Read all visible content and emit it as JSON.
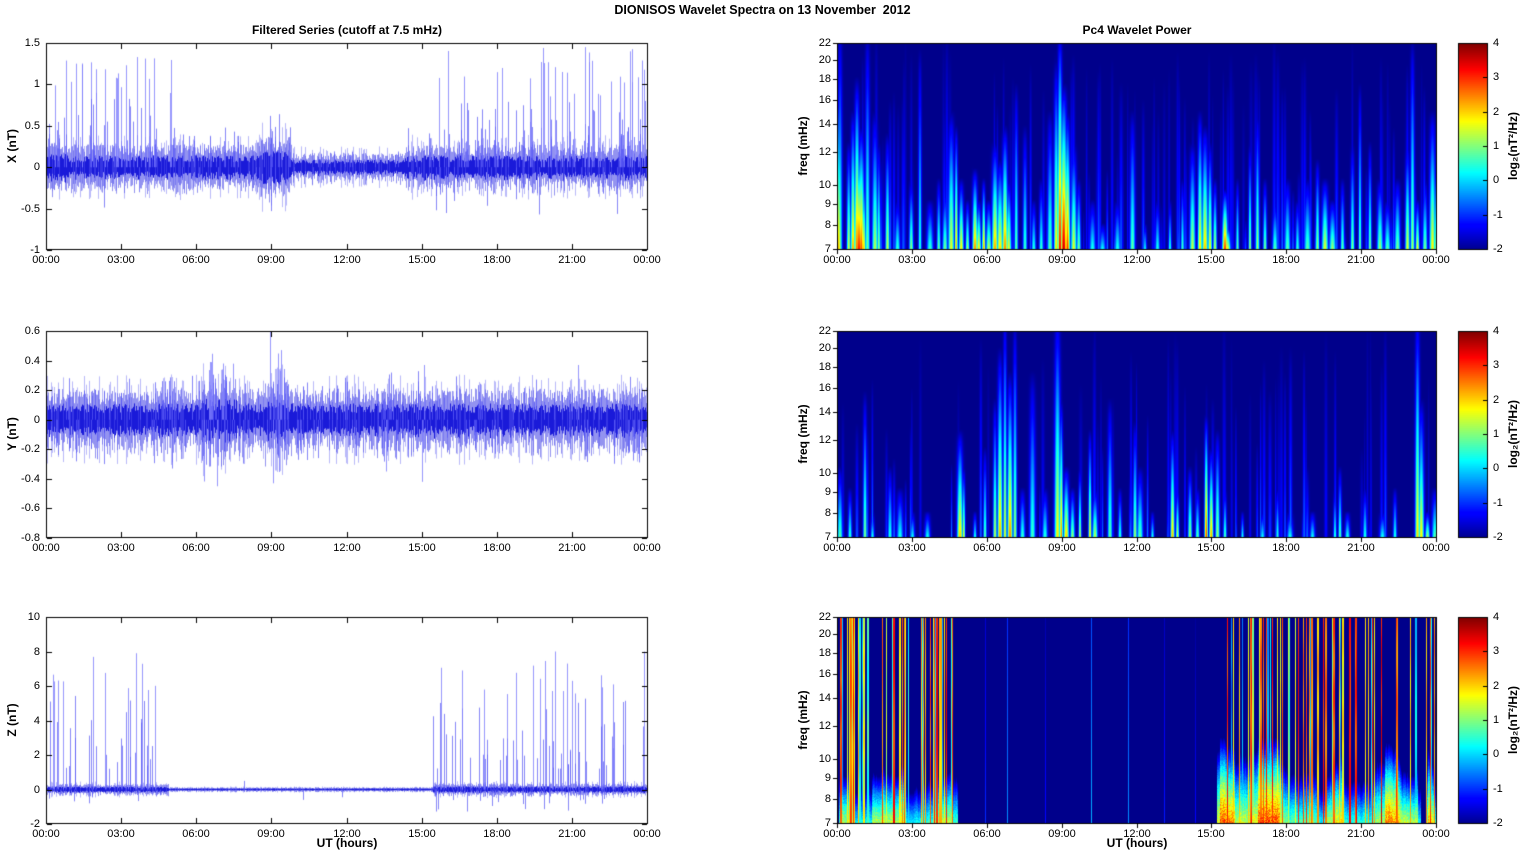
{
  "figure": {
    "title": "DIONISOS Wavelet Spectra on 13 November  2012",
    "background": "#ffffff",
    "colorbar_label": "log₂(nT²/Hz)",
    "series_color": "#0000dd",
    "spectrogram_background": "#00008b",
    "colormap": "jet"
  },
  "chart_data": [
    {
      "id": "x-filtered-series",
      "type": "line",
      "row": 0,
      "side": "left",
      "title": "Filtered Series (cutoff at 7.5 mHz)",
      "ylabel": "X (nT)",
      "xlabel": "",
      "ylim": [
        -1,
        1.5
      ],
      "yticks": [
        -1,
        -0.5,
        0,
        0.5,
        1,
        1.5
      ],
      "xtick_labels": [
        "00:00",
        "03:00",
        "06:00",
        "09:00",
        "12:00",
        "15:00",
        "18:00",
        "21:00",
        "00:00"
      ],
      "x_range_hours": [
        0,
        24
      ],
      "line_color": "#0000dd",
      "noise_segments": [
        [
          0,
          0.9,
          0.13
        ],
        [
          0.9,
          5,
          0.11
        ],
        [
          5,
          8.4,
          0.11
        ],
        [
          8.4,
          9.8,
          0.15
        ],
        [
          9.8,
          14.3,
          0.07
        ],
        [
          14.3,
          15.6,
          0.11
        ],
        [
          15.6,
          24,
          0.11
        ]
      ],
      "spike_segments": [
        [
          0,
          5,
          0.25,
          1.35,
          11
        ],
        [
          5,
          8.4,
          0.15,
          0.48,
          7
        ],
        [
          8.4,
          9.8,
          0.2,
          0.62,
          9
        ],
        [
          9.8,
          14.3,
          0.08,
          0.2,
          3
        ],
        [
          14.3,
          15.6,
          0.15,
          0.5,
          5
        ],
        [
          15.6,
          24,
          0.3,
          1.45,
          12
        ]
      ],
      "extra_spikes": [
        [
          8.92,
          0.62
        ],
        [
          8.97,
          -0.53
        ],
        [
          9.3,
          0.64
        ],
        [
          15.55,
          -0.52
        ],
        [
          3.62,
          1.33
        ],
        [
          19.8,
          1.44
        ],
        [
          21.5,
          1.45
        ],
        [
          23.9,
          0.8
        ],
        [
          2.78,
          1.08
        ],
        [
          15.3,
          0.35
        ]
      ],
      "pos_frac": 0.84,
      "neg_scale": 0.4,
      "seed": 11
    },
    {
      "id": "y-filtered-series",
      "type": "line",
      "row": 1,
      "side": "left",
      "title": "",
      "ylabel": "Y (nT)",
      "xlabel": "",
      "ylim": [
        -0.8,
        0.6
      ],
      "yticks": [
        -0.8,
        -0.6,
        -0.4,
        -0.2,
        0,
        0.2,
        0.4,
        0.6
      ],
      "xtick_labels": [
        "00:00",
        "03:00",
        "06:00",
        "09:00",
        "12:00",
        "15:00",
        "18:00",
        "21:00",
        "00:00"
      ],
      "x_range_hours": [
        0,
        24
      ],
      "line_color": "#0000dd",
      "noise_segments": [
        [
          0,
          6.2,
          0.085
        ],
        [
          6.2,
          7.6,
          0.11
        ],
        [
          7.6,
          8.7,
          0.085
        ],
        [
          8.7,
          9.6,
          0.11
        ],
        [
          9.6,
          24,
          0.085
        ]
      ],
      "spike_segments": [
        [
          0,
          24,
          0.12,
          0.3,
          6
        ],
        [
          4.7,
          5.3,
          0.2,
          0.33,
          8
        ],
        [
          6.2,
          7.6,
          0.25,
          0.45,
          10
        ],
        [
          8.7,
          9.5,
          0.25,
          0.5,
          10
        ],
        [
          9.5,
          10.6,
          0.2,
          0.35,
          6
        ],
        [
          13.2,
          14,
          0.2,
          0.35,
          6
        ],
        [
          14.6,
          15.4,
          0.2,
          0.4,
          8
        ],
        [
          22.9,
          23.9,
          0.18,
          0.3,
          6
        ]
      ],
      "extra_spikes": [
        [
          8.93,
          0.6
        ],
        [
          6.82,
          -0.45
        ],
        [
          6.55,
          0.39
        ],
        [
          7.05,
          0.38
        ],
        [
          9.05,
          -0.43
        ],
        [
          15.0,
          -0.42
        ],
        [
          15.08,
          0.37
        ],
        [
          5.02,
          -0.33
        ],
        [
          13.55,
          -0.35
        ],
        [
          23.3,
          0.29
        ],
        [
          21.2,
          0.37
        ],
        [
          2.3,
          -0.3
        ]
      ],
      "pos_frac": 0.5,
      "neg_scale": 1,
      "seed": 12
    },
    {
      "id": "z-filtered-series",
      "type": "line",
      "row": 2,
      "side": "left",
      "title": "",
      "ylabel": "Z (nT)",
      "xlabel": "UT (hours)",
      "ylim": [
        -2,
        10
      ],
      "yticks": [
        -2,
        0,
        2,
        4,
        6,
        8,
        10
      ],
      "xtick_labels": [
        "00:00",
        "03:00",
        "06:00",
        "09:00",
        "12:00",
        "15:00",
        "18:00",
        "21:00",
        "00:00"
      ],
      "x_range_hours": [
        0,
        24
      ],
      "line_color": "#0000dd",
      "noise_segments": [
        [
          0,
          4.9,
          0.13
        ],
        [
          4.9,
          15.4,
          0.05
        ],
        [
          15.4,
          24,
          0.14
        ]
      ],
      "spike_segments": [
        [
          0.1,
          4.9,
          1.2,
          7.9,
          9
        ],
        [
          15.4,
          24,
          1.2,
          8.0,
          11
        ]
      ],
      "extra_spikes": [
        [
          7.9,
          0.5
        ],
        [
          10.25,
          -0.6
        ],
        [
          11.8,
          -0.45
        ],
        [
          3.6,
          7.9
        ],
        [
          20.3,
          8.0
        ],
        [
          23.85,
          8.0
        ],
        [
          0.15,
          5.1
        ],
        [
          16.6,
          6.9
        ]
      ],
      "pos_frac": 0.78,
      "neg_scale": 0.16,
      "seed": 13
    },
    {
      "id": "x-wavelet-power",
      "type": "heatmap",
      "row": 0,
      "side": "right",
      "title": "Pc4 Wavelet Power",
      "ylabel": "freq (mHz)",
      "xlabel": "",
      "f_range": [
        7,
        22
      ],
      "f_ticks": [
        7,
        8,
        9,
        10,
        12,
        14,
        16,
        18,
        20,
        22
      ],
      "log_freq": true,
      "xtick_labels": [
        "00:00",
        "03:00",
        "06:00",
        "09:00",
        "12:00",
        "15:00",
        "18:00",
        "21:00",
        "00:00"
      ],
      "x_range_hours": [
        0,
        24
      ],
      "clim": [
        -2,
        4
      ],
      "colorbar_ticks": [
        4,
        3,
        2,
        1,
        0,
        -1,
        -2
      ],
      "faint_streaks": 150,
      "events": [
        [
          0.05,
          16,
          2.2
        ],
        [
          0.1,
          22,
          0.9
        ],
        [
          0.45,
          12,
          1.6
        ],
        [
          0.62,
          14,
          2.4
        ],
        [
          0.78,
          16.5,
          2.8
        ],
        [
          0.86,
          12,
          3.3
        ],
        [
          0.95,
          13,
          2.9
        ],
        [
          1.05,
          10,
          2.2
        ],
        [
          1.2,
          21,
          1.0
        ],
        [
          1.5,
          14,
          1.4
        ],
        [
          1.65,
          12,
          1.2
        ],
        [
          2.0,
          12.5,
          1.5
        ],
        [
          2.4,
          9,
          0.7
        ],
        [
          2.95,
          10,
          1.2
        ],
        [
          3.3,
          19,
          0.6
        ],
        [
          3.7,
          9,
          0.7
        ],
        [
          4.05,
          10,
          1.0
        ],
        [
          4.3,
          9.5,
          1.1
        ],
        [
          4.55,
          14,
          1.7
        ],
        [
          4.75,
          13,
          2.3
        ],
        [
          4.95,
          10,
          2.0
        ],
        [
          5.2,
          9,
          1.4
        ],
        [
          5.5,
          10.5,
          2.6
        ],
        [
          5.65,
          9,
          2.1
        ],
        [
          5.85,
          10,
          2.4
        ],
        [
          6.05,
          9,
          1.5
        ],
        [
          6.3,
          12,
          2.4
        ],
        [
          6.5,
          11,
          2.1
        ],
        [
          6.7,
          13,
          2.6
        ],
        [
          6.85,
          10,
          1.8
        ],
        [
          7.15,
          16,
          0.9
        ],
        [
          7.5,
          13,
          0.7
        ],
        [
          7.85,
          9,
          0.6
        ],
        [
          8.15,
          10,
          0.7
        ],
        [
          8.5,
          14,
          0.9
        ],
        [
          8.75,
          18,
          2.0
        ],
        [
          8.9,
          21,
          3.5
        ],
        [
          9.05,
          16,
          3.7
        ],
        [
          9.2,
          14,
          3.0
        ],
        [
          9.45,
          12,
          1.7
        ],
        [
          9.65,
          10,
          1.1
        ],
        [
          10.2,
          9,
          0.5
        ],
        [
          10.6,
          8,
          0.4
        ],
        [
          11.2,
          9,
          0.5
        ],
        [
          11.8,
          14,
          0.9
        ],
        [
          12.3,
          8,
          0.4
        ],
        [
          12.8,
          9,
          0.5
        ],
        [
          13.3,
          9,
          0.6
        ],
        [
          13.8,
          10,
          0.7
        ],
        [
          14.2,
          12,
          1.5
        ],
        [
          14.5,
          14,
          2.1
        ],
        [
          14.7,
          13,
          2.2
        ],
        [
          14.9,
          12,
          1.9
        ],
        [
          15.1,
          10,
          1.5
        ],
        [
          15.5,
          9.5,
          3.1
        ],
        [
          15.6,
          8,
          2.0
        ],
        [
          16.0,
          10,
          0.9
        ],
        [
          16.5,
          12,
          1.3
        ],
        [
          16.8,
          14,
          1.4
        ],
        [
          17.1,
          10,
          1.1
        ],
        [
          17.5,
          9,
          0.9
        ],
        [
          18.0,
          10,
          0.9
        ],
        [
          18.4,
          9,
          0.7
        ],
        [
          18.8,
          10,
          0.9
        ],
        [
          19.2,
          11,
          1.3
        ],
        [
          19.5,
          10,
          1.7
        ],
        [
          19.8,
          9,
          1.3
        ],
        [
          20.2,
          10,
          0.9
        ],
        [
          20.6,
          12,
          1.1
        ],
        [
          20.9,
          16,
          1.0
        ],
        [
          21.3,
          12,
          1.1
        ],
        [
          21.7,
          10,
          1.3
        ],
        [
          22.0,
          9,
          0.9
        ],
        [
          22.4,
          10,
          1.1
        ],
        [
          22.8,
          12,
          1.7
        ],
        [
          23.0,
          20,
          1.3
        ],
        [
          23.2,
          9,
          1.9
        ],
        [
          23.5,
          10,
          1.1
        ],
        [
          23.8,
          14,
          1.9
        ],
        [
          23.95,
          11,
          1.6
        ]
      ],
      "seed": 21
    },
    {
      "id": "y-wavelet-power",
      "type": "heatmap",
      "row": 1,
      "side": "right",
      "title": "",
      "ylabel": "freq (mHz)",
      "xlabel": "",
      "f_range": [
        7,
        22
      ],
      "f_ticks": [
        7,
        8,
        9,
        10,
        12,
        14,
        16,
        18,
        20,
        22
      ],
      "log_freq": true,
      "xtick_labels": [
        "00:00",
        "03:00",
        "06:00",
        "09:00",
        "12:00",
        "15:00",
        "18:00",
        "21:00",
        "00:00"
      ],
      "x_range_hours": [
        0,
        24
      ],
      "clim": [
        -2,
        4
      ],
      "colorbar_ticks": [
        4,
        3,
        2,
        1,
        0,
        -1,
        -2
      ],
      "faint_streaks": 80,
      "events": [
        [
          0.1,
          10,
          0.9
        ],
        [
          0.5,
          9,
          0.7
        ],
        [
          1.1,
          14.5,
          1.1
        ],
        [
          1.4,
          8,
          0.5
        ],
        [
          2.1,
          10,
          0.6
        ],
        [
          2.5,
          9,
          0.5
        ],
        [
          3.0,
          8,
          0.4
        ],
        [
          3.6,
          8,
          0.5
        ],
        [
          4.9,
          12,
          2.2
        ],
        [
          5.05,
          10,
          1.7
        ],
        [
          5.5,
          8,
          0.6
        ],
        [
          5.9,
          11,
          0.9
        ],
        [
          6.3,
          14,
          1.5
        ],
        [
          6.5,
          18,
          2.4
        ],
        [
          6.7,
          22,
          1.7
        ],
        [
          6.9,
          16,
          2.6
        ],
        [
          7.1,
          21,
          1.3
        ],
        [
          7.4,
          9,
          0.7
        ],
        [
          7.8,
          16,
          0.7
        ],
        [
          8.3,
          9,
          0.6
        ],
        [
          8.8,
          22,
          1.9
        ],
        [
          8.95,
          14,
          2.6
        ],
        [
          9.15,
          10,
          2.2
        ],
        [
          9.4,
          9,
          1.3
        ],
        [
          9.7,
          10,
          1.5
        ],
        [
          10.1,
          12,
          2.0
        ],
        [
          10.3,
          9,
          1.5
        ],
        [
          10.9,
          14,
          0.9
        ],
        [
          11.3,
          9,
          0.7
        ],
        [
          11.9,
          12.5,
          1.3
        ],
        [
          12.1,
          10,
          0.9
        ],
        [
          12.6,
          8,
          0.5
        ],
        [
          13.4,
          12,
          2.2
        ],
        [
          13.6,
          9,
          1.7
        ],
        [
          14.1,
          10,
          1.3
        ],
        [
          14.4,
          9,
          0.9
        ],
        [
          14.75,
          13,
          3.0
        ],
        [
          14.95,
          11,
          2.4
        ],
        [
          15.2,
          12,
          1.3
        ],
        [
          15.5,
          9,
          0.9
        ],
        [
          16.2,
          8,
          0.5
        ],
        [
          17.0,
          8,
          0.4
        ],
        [
          17.6,
          9,
          0.6
        ],
        [
          18.1,
          8,
          0.5
        ],
        [
          19.0,
          8,
          0.4
        ],
        [
          19.9,
          9,
          0.7
        ],
        [
          20.1,
          10,
          0.9
        ],
        [
          20.4,
          8,
          0.6
        ],
        [
          21.1,
          9,
          0.6
        ],
        [
          21.8,
          8,
          0.5
        ],
        [
          22.3,
          9,
          0.6
        ],
        [
          23.2,
          22,
          2.0
        ],
        [
          23.35,
          14,
          1.9
        ],
        [
          23.6,
          8,
          1.5
        ],
        [
          23.9,
          9,
          0.9
        ]
      ],
      "seed": 22
    },
    {
      "id": "z-wavelet-power",
      "type": "heatmap-stripes",
      "row": 2,
      "side": "right",
      "title": "",
      "ylabel": "freq (mHz)",
      "xlabel": "UT (hours)",
      "f_range": [
        7,
        22
      ],
      "f_ticks": [
        7,
        8,
        9,
        10,
        12,
        14,
        16,
        18,
        20,
        22
      ],
      "log_freq": true,
      "xtick_labels": [
        "00:00",
        "03:00",
        "06:00",
        "09:00",
        "12:00",
        "15:00",
        "18:00",
        "21:00",
        "00:00"
      ],
      "x_range_hours": [
        0,
        24
      ],
      "clim": [
        -2,
        4
      ],
      "colorbar_ticks": [
        4,
        3,
        2,
        1,
        0,
        -1,
        -2
      ],
      "stripe_bands": [
        [
          0.08,
          4.8,
          46
        ],
        [
          15.2,
          23.3,
          66
        ],
        [
          23.55,
          23.92,
          6
        ]
      ],
      "hot_regions": [
        [
          0.1,
          0.6
        ],
        [
          1.4,
          2.7
        ],
        [
          3.9,
          4.6
        ],
        [
          15.3,
          15.9
        ],
        [
          16.8,
          17.7
        ],
        [
          19.6,
          20.2
        ],
        [
          21.9,
          23.2
        ],
        [
          23.6,
          23.9
        ]
      ],
      "quiet_streaks": [
        [
          5.9,
          -1.0
        ],
        [
          6.8,
          -0.4
        ],
        [
          8.3,
          -1.2
        ],
        [
          10.15,
          -0.2
        ],
        [
          11.65,
          -0.4
        ],
        [
          13.1,
          -1.1
        ],
        [
          14.3,
          -1.3
        ]
      ],
      "events": [],
      "seed": 23
    }
  ]
}
